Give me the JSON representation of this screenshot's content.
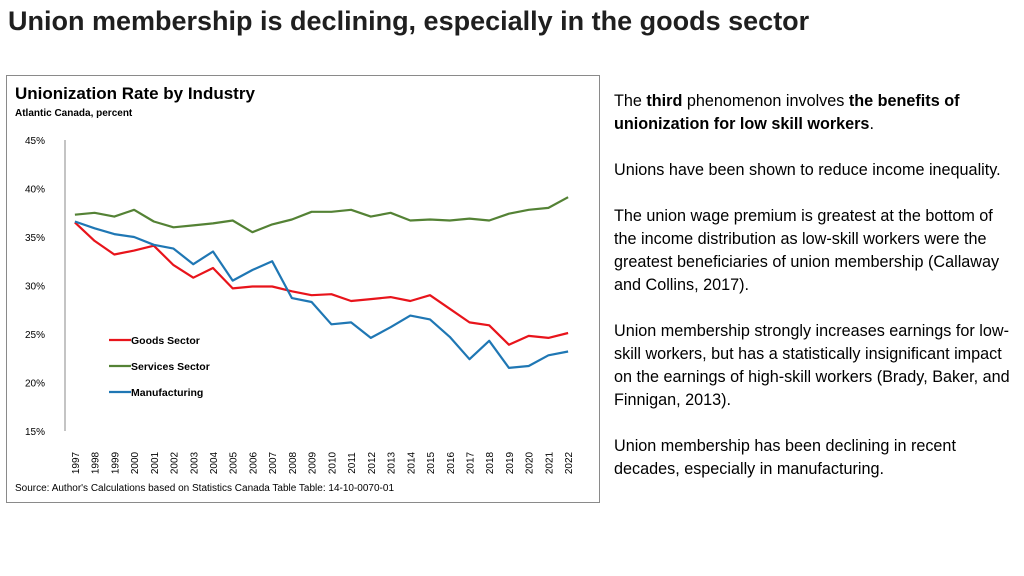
{
  "slide": {
    "title": "Union membership is declining, especially in the goods sector"
  },
  "chart_data": {
    "type": "line",
    "title": "Unionization Rate by Industry",
    "subtitle": "Atlantic Canada, percent",
    "source": "Source: Author's Calculations based on Statistics Canada Table Table: 14-10-0070-01",
    "categories": [
      "1997",
      "1998",
      "1999",
      "2000",
      "2001",
      "2002",
      "2003",
      "2004",
      "2005",
      "2006",
      "2007",
      "2008",
      "2009",
      "2010",
      "2011",
      "2012",
      "2013",
      "2014",
      "2015",
      "2016",
      "2017",
      "2018",
      "2019",
      "2020",
      "2021",
      "2022"
    ],
    "ylim": [
      15,
      45
    ],
    "yticks": [
      15,
      20,
      25,
      30,
      35,
      40,
      45
    ],
    "ytick_labels": [
      "15%",
      "20%",
      "25%",
      "30%",
      "35%",
      "40%",
      "45%"
    ],
    "legend_position": "left-middle",
    "series": [
      {
        "name": "Goods Sector",
        "color": "#e8141b",
        "values": [
          36.5,
          34.6,
          33.2,
          33.6,
          34.1,
          32.1,
          30.8,
          31.8,
          29.7,
          29.9,
          29.9,
          29.4,
          29.0,
          29.1,
          28.4,
          28.6,
          28.8,
          28.4,
          29.0,
          27.6,
          26.2,
          25.9,
          23.9,
          24.8,
          24.6,
          25.1
        ]
      },
      {
        "name": "Services Sector",
        "color": "#548235",
        "values": [
          37.3,
          37.5,
          37.1,
          37.8,
          36.6,
          36.0,
          36.2,
          36.4,
          36.7,
          35.5,
          36.3,
          36.8,
          37.6,
          37.6,
          37.8,
          37.1,
          37.5,
          36.7,
          36.8,
          36.7,
          36.9,
          36.7,
          37.4,
          37.8,
          38.0,
          39.1
        ]
      },
      {
        "name": "Manufacturing",
        "color": "#1f77b4",
        "values": [
          36.6,
          35.9,
          35.3,
          35.0,
          34.2,
          33.8,
          32.2,
          33.5,
          30.5,
          31.6,
          32.5,
          28.7,
          28.3,
          26.0,
          26.2,
          24.6,
          25.7,
          26.9,
          26.5,
          24.7,
          22.4,
          24.3,
          21.5,
          21.7,
          22.8,
          23.2
        ]
      }
    ]
  },
  "side_text": {
    "p1_a": "The ",
    "p1_b": "third",
    "p1_c": " phenomenon involves ",
    "p1_d": "the benefits of unionization for low skill workers",
    "p1_e": ".",
    "p2": "Unions have been shown to reduce income inequality.",
    "p3": "The union wage premium is greatest at the bottom of the income distribution as low-skill workers were the greatest beneficiaries of union membership (Callaway and Collins, 2017).",
    "p4": "Union membership strongly increases earnings for low-skill workers, but has a statistically insignificant impact on the earnings of high-skill workers (Brady, Baker, and Finnigan, 2013).",
    "p5": "Union membership has been declining in recent decades, especially in manufacturing."
  }
}
